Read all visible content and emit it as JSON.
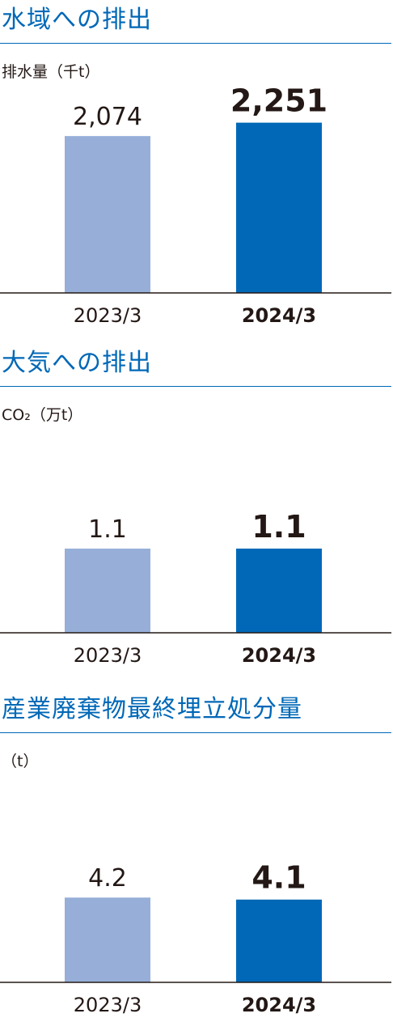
{
  "colors": {
    "title": "#0068b7",
    "bar_prev": "#97afd8",
    "bar_curr": "#0068b7",
    "axis": "#231815"
  },
  "sections": [
    {
      "title": "水域への排出",
      "unit": "排水量（千t）"
    },
    {
      "title": "大気への排出",
      "unit": "CO₂（万t）"
    },
    {
      "title": "産業廃棄物最終埋立処分量",
      "unit": "（t）"
    }
  ],
  "chart_data": [
    {
      "type": "bar",
      "title": "水域への排出",
      "ylabel": "排水量（千t）",
      "categories": [
        "2023/3",
        "2024/3"
      ],
      "values": [
        2074,
        2251
      ],
      "value_labels": [
        "2,074",
        "2,251"
      ],
      "ylim": [
        0,
        2450
      ],
      "grid": false,
      "highlight_index": 1
    },
    {
      "type": "bar",
      "title": "大気への排出",
      "ylabel": "CO₂（万t）",
      "categories": [
        "2023/3",
        "2024/3"
      ],
      "values": [
        1.1,
        1.1
      ],
      "value_labels": [
        "1.1",
        "1.1"
      ],
      "ylim": [
        0,
        2.4
      ],
      "grid": false,
      "highlight_index": 1
    },
    {
      "type": "bar",
      "title": "産業廃棄物最終埋立処分量",
      "ylabel": "（t）",
      "categories": [
        "2023/3",
        "2024/3"
      ],
      "values": [
        4.2,
        4.1
      ],
      "value_labels": [
        "4.2",
        "4.1"
      ],
      "ylim": [
        0,
        9.1
      ],
      "grid": false,
      "highlight_index": 1
    }
  ]
}
